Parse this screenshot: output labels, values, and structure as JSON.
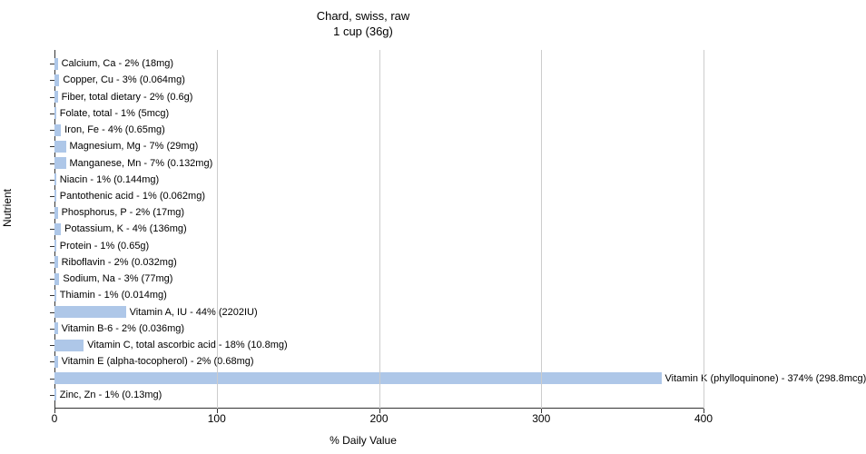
{
  "chart": {
    "type": "bar-horizontal",
    "title_line1": "Chard, swiss, raw",
    "title_line2": "1 cup (36g)",
    "title_fontsize": 13,
    "xlabel": "% Daily Value",
    "ylabel": "Nutrient",
    "label_fontsize": 12,
    "xlim": [
      0,
      400
    ],
    "xtick_step": 100,
    "xticks": [
      0,
      100,
      200,
      300,
      400
    ],
    "bar_color": "#aec7e8",
    "grid_color": "#cccccc",
    "axis_color": "#333333",
    "background_color": "#ffffff",
    "text_color": "#000000",
    "bar_label_fontsize": 11,
    "bars": [
      {
        "label": "Calcium, Ca - 2% (18mg)",
        "value": 2
      },
      {
        "label": "Copper, Cu - 3% (0.064mg)",
        "value": 3
      },
      {
        "label": "Fiber, total dietary - 2% (0.6g)",
        "value": 2
      },
      {
        "label": "Folate, total - 1% (5mcg)",
        "value": 1
      },
      {
        "label": "Iron, Fe - 4% (0.65mg)",
        "value": 4
      },
      {
        "label": "Magnesium, Mg - 7% (29mg)",
        "value": 7
      },
      {
        "label": "Manganese, Mn - 7% (0.132mg)",
        "value": 7
      },
      {
        "label": "Niacin - 1% (0.144mg)",
        "value": 1
      },
      {
        "label": "Pantothenic acid - 1% (0.062mg)",
        "value": 1
      },
      {
        "label": "Phosphorus, P - 2% (17mg)",
        "value": 2
      },
      {
        "label": "Potassium, K - 4% (136mg)",
        "value": 4
      },
      {
        "label": "Protein - 1% (0.65g)",
        "value": 1
      },
      {
        "label": "Riboflavin - 2% (0.032mg)",
        "value": 2
      },
      {
        "label": "Sodium, Na - 3% (77mg)",
        "value": 3
      },
      {
        "label": "Thiamin - 1% (0.014mg)",
        "value": 1
      },
      {
        "label": "Vitamin A, IU - 44% (2202IU)",
        "value": 44
      },
      {
        "label": "Vitamin B-6 - 2% (0.036mg)",
        "value": 2
      },
      {
        "label": "Vitamin C, total ascorbic acid - 18% (10.8mg)",
        "value": 18
      },
      {
        "label": "Vitamin E (alpha-tocopherol) - 2% (0.68mg)",
        "value": 2
      },
      {
        "label": "Vitamin K (phylloquinone) - 374% (298.8mcg)",
        "value": 374
      },
      {
        "label": "Zinc, Zn - 1% (0.13mg)",
        "value": 1
      }
    ]
  }
}
